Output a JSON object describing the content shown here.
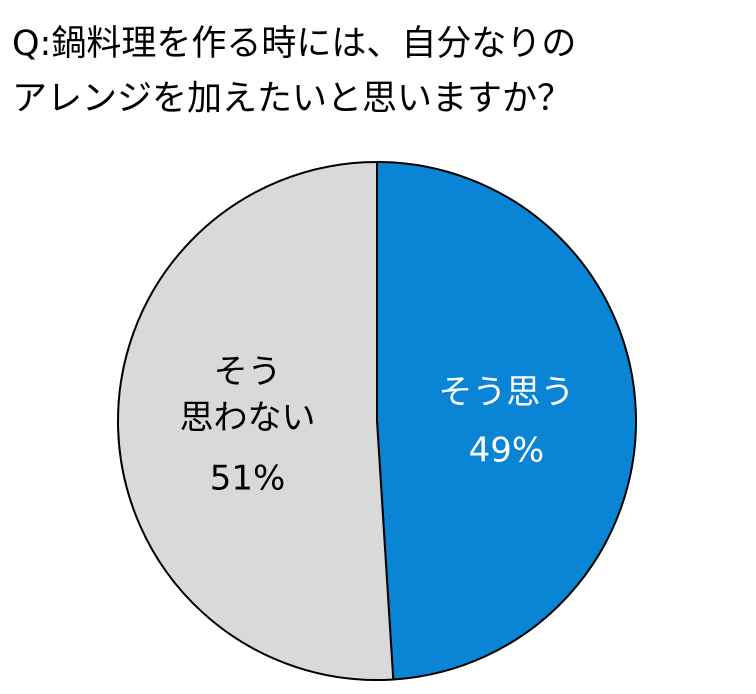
{
  "chart_data": {
    "type": "pie",
    "title": [
      "Q:鍋料理を作る時には、自分なりの",
      "アレンジを加えたいと思いますか？"
    ],
    "categories": [
      "そう思う",
      "そう\n思わない"
    ],
    "values": [
      49,
      51
    ],
    "value_labels": [
      "49%",
      "51%"
    ],
    "colors": [
      "#0a84d4",
      "#d9d9d9"
    ],
    "label_colors": [
      "#ffffff",
      "#000000"
    ]
  }
}
